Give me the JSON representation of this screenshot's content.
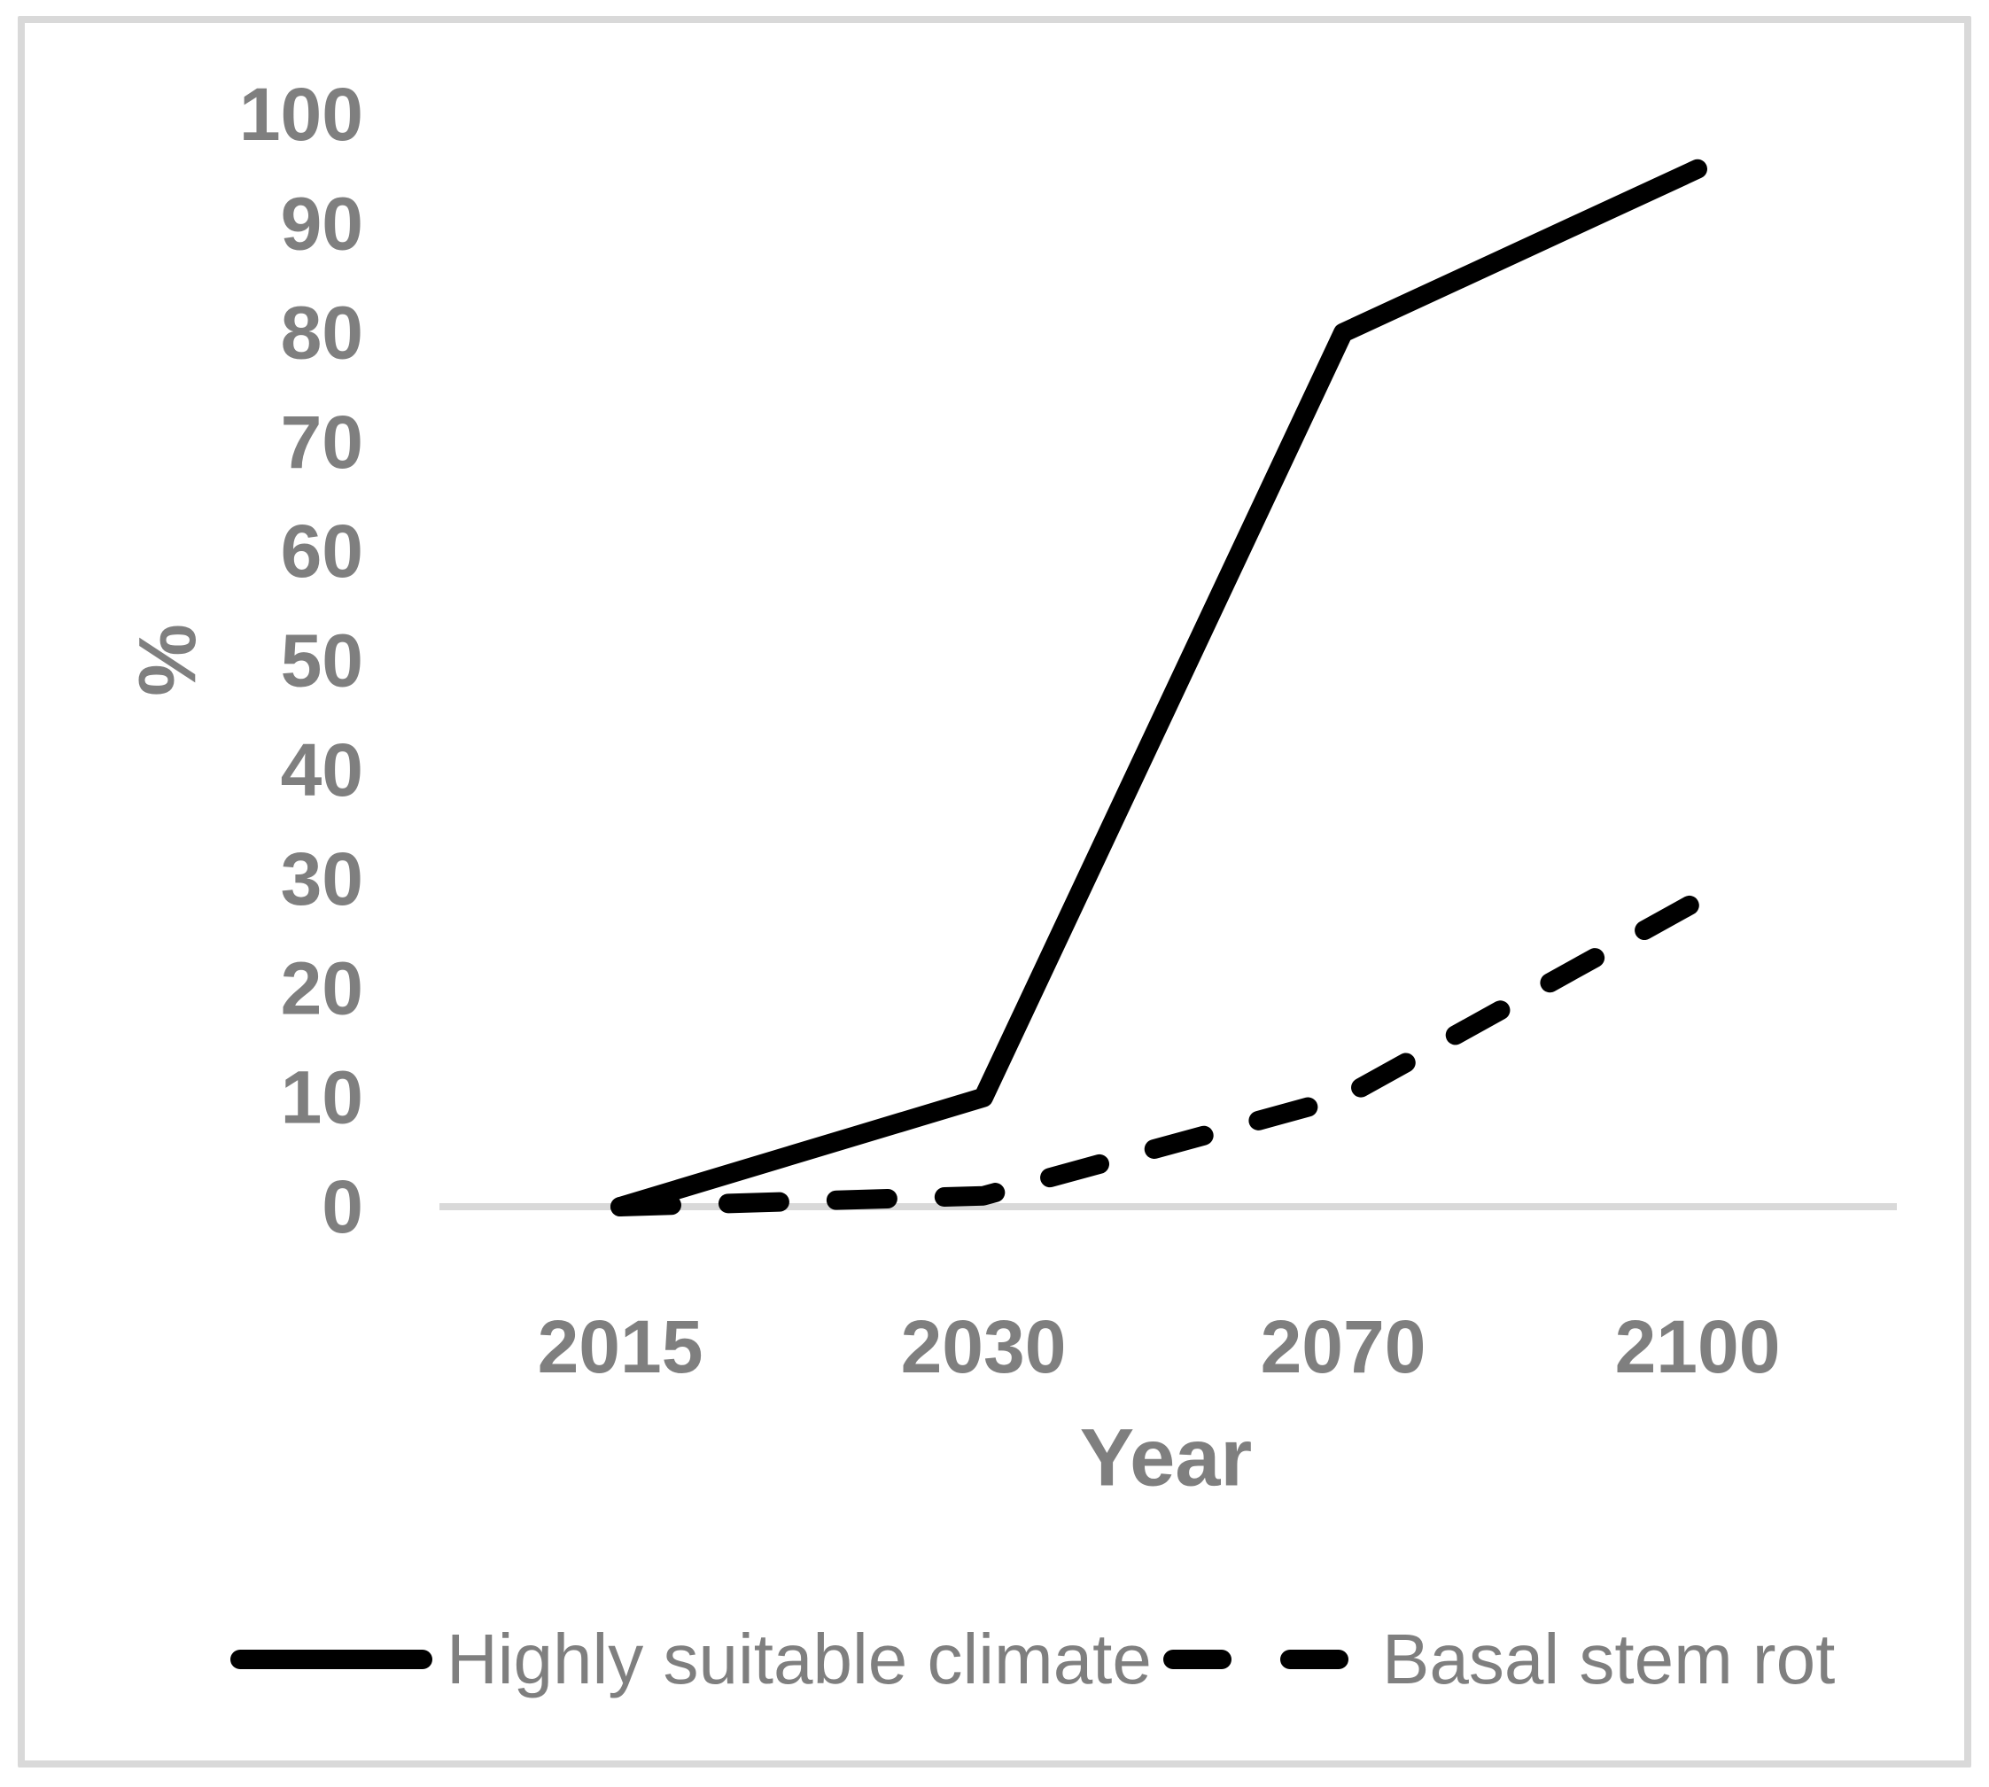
{
  "colors": {
    "series_line": "#000000",
    "labels_gray": "#7F7F7F",
    "axis_gray": "#D9D9D9",
    "background": "#FFFFFF"
  },
  "chart_data": {
    "type": "line",
    "categories": [
      "2015",
      "2030",
      "2070",
      "2100"
    ],
    "series": [
      {
        "name": "Highly suitable climate",
        "style": "solid",
        "values": [
          0,
          10,
          80,
          95
        ]
      },
      {
        "name": "Basal stem rot",
        "style": "dashed",
        "values": [
          0,
          1,
          10,
          28
        ]
      }
    ],
    "title": "",
    "xlabel": "Year",
    "ylabel": "%",
    "ylim": [
      0,
      100
    ],
    "yticks": [
      0,
      10,
      20,
      30,
      40,
      50,
      60,
      70,
      80,
      90,
      100
    ],
    "grid": "x-axis-baseline-only",
    "legend_position": "bottom"
  },
  "legend": {
    "items": [
      {
        "label": "Highly suitable climate",
        "swatch": "solid-line"
      },
      {
        "label": "Basal stem rot",
        "swatch": "dashed-line"
      }
    ]
  }
}
